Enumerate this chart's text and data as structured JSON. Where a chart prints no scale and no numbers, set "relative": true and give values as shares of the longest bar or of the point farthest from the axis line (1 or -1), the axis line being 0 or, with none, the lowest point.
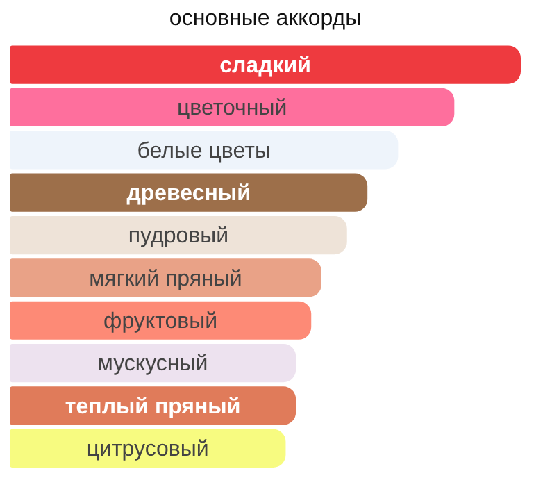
{
  "chart_data": {
    "type": "bar",
    "orientation": "horizontal",
    "relative": true,
    "title": "основные аккорды",
    "categories": [
      "сладкий",
      "цветочный",
      "белые цветы",
      "древесный",
      "пудровый",
      "мягкий пряный",
      "фруктовый",
      "мускусный",
      "теплый пряный",
      "цитрусовый"
    ],
    "values": [
      1,
      0.87,
      0.76,
      0.7,
      0.66,
      0.61,
      0.59,
      0.56,
      0.56,
      0.54
    ],
    "colors": [
      "#ee3a3f",
      "#fe6f9d",
      "#eef4fb",
      "#9d6f4a",
      "#eee3d8",
      "#e9a287",
      "#fd8a76",
      "#ede2ef",
      "#e07b5a",
      "#f7fb80"
    ],
    "legend": false
  }
}
